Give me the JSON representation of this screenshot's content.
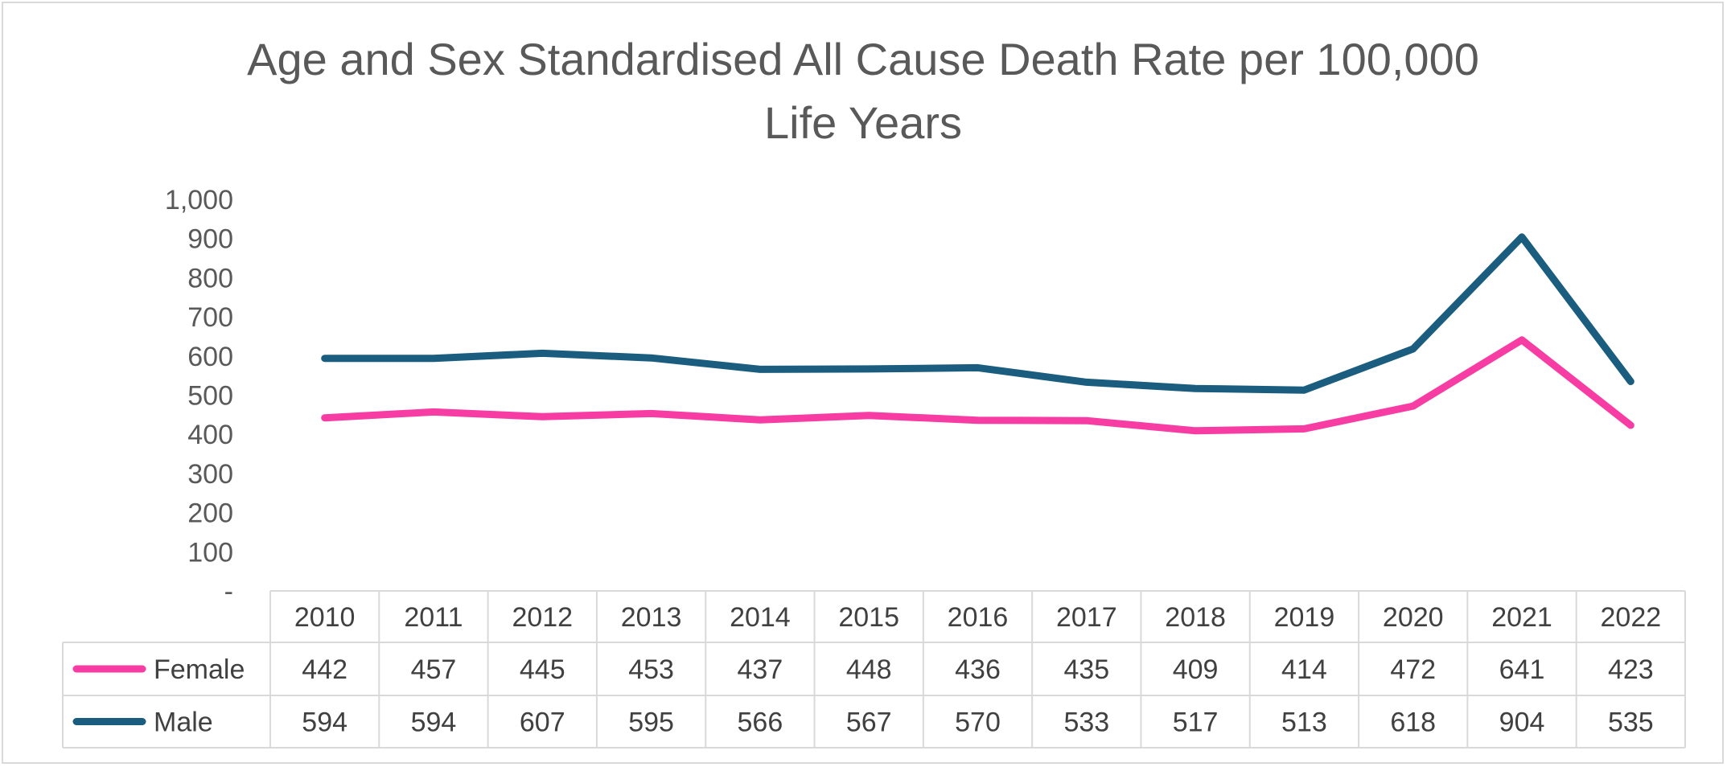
{
  "chart_data": {
    "type": "line",
    "title_line1": "Age and Sex Standardised All Cause Death Rate per 100,000",
    "title_line2": "Life Years",
    "categories": [
      "2010",
      "2011",
      "2012",
      "2013",
      "2014",
      "2015",
      "2016",
      "2017",
      "2018",
      "2019",
      "2020",
      "2021",
      "2022"
    ],
    "yticks": [
      "-",
      "100",
      "200",
      "300",
      "400",
      "500",
      "600",
      "700",
      "800",
      "900",
      "1,000"
    ],
    "ylim": [
      0,
      1000
    ],
    "grid": false,
    "legend": "data-table",
    "series": [
      {
        "name": "Female",
        "color": "#f73ca3",
        "values": [
          442,
          457,
          445,
          453,
          437,
          448,
          436,
          435,
          409,
          414,
          472,
          641,
          423
        ]
      },
      {
        "name": "Male",
        "color": "#1a5d7e",
        "values": [
          594,
          594,
          607,
          595,
          566,
          567,
          570,
          533,
          517,
          513,
          618,
          904,
          535
        ]
      }
    ]
  }
}
